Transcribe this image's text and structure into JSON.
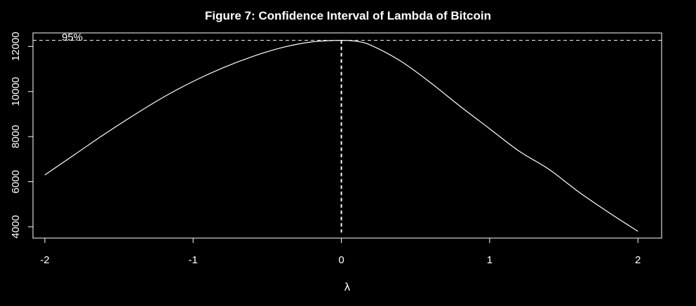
{
  "chart_data": {
    "type": "line",
    "title": "Figure  7: Confidence Interval of Lambda of Bitcoin",
    "xlabel": "λ",
    "ylabel": "",
    "xlim": [
      -2.08,
      2.16
    ],
    "ylim": [
      3500,
      12600
    ],
    "x_ticks": [
      "-2",
      "-1",
      "0",
      "1",
      "2"
    ],
    "y_ticks": [
      "4000",
      "6000",
      "8000",
      "10000",
      "12000"
    ],
    "grid": false,
    "series": [
      {
        "x": [
          -2.0,
          -1.8,
          -1.6,
          -1.4,
          -1.2,
          -1.0,
          -0.8,
          -0.6,
          -0.4,
          -0.2,
          0.0,
          0.1,
          0.2,
          0.4,
          0.6,
          0.8,
          1.0,
          1.2,
          1.4,
          1.6,
          1.8,
          2.0
        ],
        "y": [
          6300,
          7200,
          8100,
          8950,
          9750,
          10450,
          11050,
          11550,
          11950,
          12200,
          12270,
          12230,
          12050,
          11350,
          10400,
          9350,
          8350,
          7350,
          6550,
          5550,
          4650,
          3800
        ]
      }
    ],
    "annotations": {
      "ci_level_text": "95%",
      "ci_threshold_y": 12270,
      "lambda_hat": 0.0
    },
    "colors": {
      "background": "#000000",
      "foreground": "#ffffff"
    }
  }
}
